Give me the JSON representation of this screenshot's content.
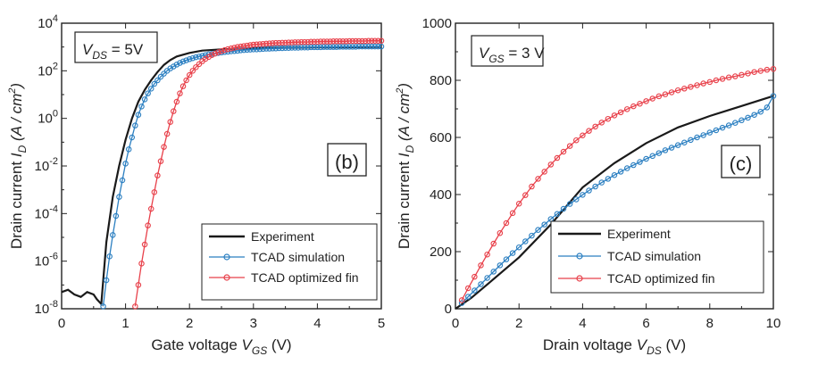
{
  "chart_data": [
    {
      "type": "line",
      "panel_label": "(b)",
      "condition": {
        "sym": "V",
        "sub": "DS",
        "rest": " = 5V"
      },
      "xlabel": {
        "text": "Gate voltage ",
        "sym": "V",
        "sub": "GS",
        "unit": " (V)"
      },
      "ylabel": {
        "pre": "Drain current ",
        "sym": "I",
        "sub": "D",
        "unit_open": " (A / cm",
        "unit_sup": "2",
        "unit_close": ")"
      },
      "xlim": [
        0,
        5
      ],
      "ylim_log10": [
        -8,
        4
      ],
      "yscale": "log",
      "xticks": [
        "0",
        "1",
        "2",
        "3",
        "4",
        "5"
      ],
      "yticks": [
        {
          "base": "10",
          "exp": "-8"
        },
        {
          "base": "10",
          "exp": "-6"
        },
        {
          "base": "10",
          "exp": "-4"
        },
        {
          "base": "10",
          "exp": "-2"
        },
        {
          "base": "10",
          "exp": "0"
        },
        {
          "base": "10",
          "exp": "2"
        },
        {
          "base": "10",
          "exp": "4"
        }
      ],
      "legend_position": "bottom-right",
      "series": [
        {
          "name": "Experiment",
          "color": "#1a1a1a",
          "marker": "none",
          "x": [
            0,
            0.1,
            0.2,
            0.3,
            0.4,
            0.5,
            0.55,
            0.62,
            0.7,
            0.8,
            0.9,
            1.0,
            1.1,
            1.2,
            1.3,
            1.4,
            1.5,
            1.6,
            1.7,
            1.8,
            2.0,
            2.2,
            2.5,
            3.0,
            3.5,
            4.0,
            5.0
          ],
          "log10_y": [
            -7.3,
            -7.2,
            -7.4,
            -7.5,
            -7.3,
            -7.4,
            -7.6,
            -7.8,
            -5.2,
            -3.3,
            -2.0,
            -0.9,
            0.0,
            0.7,
            1.2,
            1.6,
            1.95,
            2.25,
            2.45,
            2.6,
            2.75,
            2.85,
            2.9,
            2.95,
            2.97,
            2.98,
            3.0
          ]
        },
        {
          "name": "TCAD simulation",
          "color": "#2b7fc1",
          "marker": "circle",
          "x": [
            0.65,
            0.7,
            0.75,
            0.8,
            0.85,
            0.9,
            0.95,
            1.0,
            1.05,
            1.1,
            1.15,
            1.2,
            1.25,
            1.3,
            1.35,
            1.4,
            1.45,
            1.5,
            1.55,
            1.6,
            1.65,
            1.7,
            1.75,
            1.8,
            1.85,
            1.9,
            1.95,
            2.0,
            2.05,
            2.1,
            2.15,
            2.2,
            2.25,
            2.3,
            2.35,
            2.4,
            2.45,
            2.5,
            2.55,
            2.6,
            2.65,
            2.7,
            2.75,
            2.8,
            2.85,
            2.9,
            2.95,
            3.0,
            3.05,
            3.1,
            3.15,
            3.2,
            3.25,
            3.3,
            3.35,
            3.4,
            3.45,
            3.5,
            3.55,
            3.6,
            3.65,
            3.7,
            3.75,
            3.8,
            3.85,
            3.9,
            3.95,
            4.0,
            4.05,
            4.1,
            4.15,
            4.2,
            4.25,
            4.3,
            4.35,
            4.4,
            4.45,
            4.5,
            4.55,
            4.6,
            4.65,
            4.7,
            4.75,
            4.8,
            4.85,
            4.9,
            4.95,
            5.0
          ],
          "log10_y": [
            -7.9,
            -6.8,
            -5.8,
            -4.9,
            -4.1,
            -3.3,
            -2.6,
            -1.9,
            -1.3,
            -0.8,
            -0.3,
            0.15,
            0.5,
            0.8,
            1.05,
            1.25,
            1.45,
            1.6,
            1.75,
            1.88,
            2.0,
            2.1,
            2.18,
            2.26,
            2.33,
            2.39,
            2.44,
            2.49,
            2.53,
            2.57,
            2.6,
            2.63,
            2.66,
            2.69,
            2.71,
            2.73,
            2.75,
            2.77,
            2.79,
            2.8,
            2.82,
            2.83,
            2.84,
            2.86,
            2.87,
            2.88,
            2.89,
            2.9,
            2.9,
            2.91,
            2.92,
            2.93,
            2.93,
            2.94,
            2.94,
            2.95,
            2.95,
            2.96,
            2.96,
            2.97,
            2.97,
            2.97,
            2.98,
            2.98,
            2.98,
            2.99,
            2.99,
            2.99,
            2.99,
            3.0,
            3.0,
            3.0,
            3.0,
            3.0,
            3.01,
            3.01,
            3.01,
            3.01,
            3.01,
            3.01,
            3.02,
            3.02,
            3.02,
            3.02,
            3.02,
            3.02,
            3.02,
            3.02
          ]
        },
        {
          "name": "TCAD optimized fin",
          "color": "#e8404a",
          "marker": "circle",
          "x": [
            1.15,
            1.2,
            1.25,
            1.3,
            1.35,
            1.4,
            1.45,
            1.5,
            1.55,
            1.6,
            1.65,
            1.7,
            1.75,
            1.8,
            1.85,
            1.9,
            1.95,
            2.0,
            2.05,
            2.1,
            2.15,
            2.2,
            2.25,
            2.3,
            2.35,
            2.4,
            2.45,
            2.5,
            2.55,
            2.6,
            2.65,
            2.7,
            2.75,
            2.8,
            2.85,
            2.9,
            2.95,
            3.0,
            3.05,
            3.1,
            3.15,
            3.2,
            3.25,
            3.3,
            3.35,
            3.4,
            3.45,
            3.5,
            3.55,
            3.6,
            3.65,
            3.7,
            3.75,
            3.8,
            3.85,
            3.9,
            3.95,
            4.0,
            4.05,
            4.1,
            4.15,
            4.2,
            4.25,
            4.3,
            4.35,
            4.4,
            4.45,
            4.5,
            4.55,
            4.6,
            4.65,
            4.7,
            4.75,
            4.8,
            4.85,
            4.9,
            4.95,
            5.0
          ],
          "log10_y": [
            -7.9,
            -7.0,
            -6.1,
            -5.3,
            -4.5,
            -3.8,
            -3.1,
            -2.4,
            -1.8,
            -1.2,
            -0.65,
            -0.15,
            0.3,
            0.7,
            1.05,
            1.35,
            1.6,
            1.82,
            2.0,
            2.15,
            2.28,
            2.4,
            2.5,
            2.58,
            2.66,
            2.72,
            2.78,
            2.83,
            2.87,
            2.91,
            2.94,
            2.97,
            3.0,
            3.02,
            3.04,
            3.06,
            3.08,
            3.1,
            3.11,
            3.12,
            3.13,
            3.14,
            3.15,
            3.16,
            3.17,
            3.17,
            3.18,
            3.18,
            3.19,
            3.19,
            3.2,
            3.2,
            3.21,
            3.21,
            3.21,
            3.22,
            3.22,
            3.22,
            3.23,
            3.23,
            3.23,
            3.23,
            3.24,
            3.24,
            3.24,
            3.24,
            3.24,
            3.25,
            3.25,
            3.25,
            3.25,
            3.25,
            3.25,
            3.26,
            3.26,
            3.26,
            3.26,
            3.26
          ]
        }
      ]
    },
    {
      "type": "line",
      "panel_label": "(c)",
      "condition": {
        "sym": "V",
        "sub": "GS",
        "rest": " = 3 V"
      },
      "xlabel": {
        "text": "Drain voltage ",
        "sym": "V",
        "sub": "DS",
        "unit": " (V)"
      },
      "ylabel": {
        "pre": "Drain current ",
        "sym": "I",
        "sub": "D",
        "unit_open": " (A / cm",
        "unit_sup": "2",
        "unit_close": ")"
      },
      "xlim": [
        0,
        10
      ],
      "ylim": [
        0,
        1000
      ],
      "yscale": "linear",
      "xticks": [
        "0",
        "2",
        "4",
        "6",
        "8",
        "10"
      ],
      "yticks": [
        "0",
        "200",
        "400",
        "600",
        "800",
        "1000"
      ],
      "legend_position": "bottom-right",
      "series": [
        {
          "name": "Experiment",
          "color": "#1a1a1a",
          "marker": "none",
          "x": [
            0,
            0.5,
            1,
            2,
            3,
            4,
            5,
            6,
            7,
            8,
            9,
            10
          ],
          "y": [
            0,
            38,
            85,
            180,
            295,
            425,
            510,
            580,
            635,
            675,
            710,
            745
          ]
        },
        {
          "name": "TCAD simulation",
          "color": "#2b7fc1",
          "marker": "circle",
          "x": [
            0.2,
            0.4,
            0.6,
            0.8,
            1.0,
            1.2,
            1.4,
            1.6,
            1.8,
            2.0,
            2.2,
            2.4,
            2.6,
            2.8,
            3.0,
            3.2,
            3.4,
            3.6,
            3.8,
            4.0,
            4.2,
            4.4,
            4.6,
            4.8,
            5.0,
            5.2,
            5.4,
            5.6,
            5.8,
            6.0,
            6.2,
            6.4,
            6.6,
            6.8,
            7.0,
            7.2,
            7.4,
            7.6,
            7.8,
            8.0,
            8.2,
            8.4,
            8.6,
            8.8,
            9.0,
            9.2,
            9.4,
            9.6,
            9.8,
            10.0
          ],
          "y": [
            20,
            42,
            64,
            86,
            108,
            130,
            152,
            173,
            195,
            215,
            236,
            256,
            276,
            295,
            314,
            332,
            350,
            367,
            383,
            399,
            414,
            428,
            442,
            455,
            468,
            480,
            492,
            503,
            514,
            525,
            535,
            545,
            555,
            564,
            573,
            582,
            591,
            600,
            608,
            617,
            625,
            634,
            642,
            651,
            660,
            669,
            679,
            690,
            705,
            745
          ]
        },
        {
          "name": "TCAD optimized fin",
          "color": "#e8404a",
          "marker": "circle",
          "x": [
            0.2,
            0.4,
            0.6,
            0.8,
            1.0,
            1.2,
            1.4,
            1.6,
            1.8,
            2.0,
            2.2,
            2.4,
            2.6,
            2.8,
            3.0,
            3.2,
            3.4,
            3.6,
            3.8,
            4.0,
            4.2,
            4.4,
            4.6,
            4.8,
            5.0,
            5.2,
            5.4,
            5.6,
            5.8,
            6.0,
            6.2,
            6.4,
            6.6,
            6.8,
            7.0,
            7.2,
            7.4,
            7.6,
            7.8,
            8.0,
            8.2,
            8.4,
            8.6,
            8.8,
            9.0,
            9.2,
            9.4,
            9.6,
            9.8,
            10.0
          ],
          "y": [
            30,
            72,
            112,
            152,
            190,
            228,
            265,
            300,
            335,
            368,
            398,
            428,
            455,
            480,
            505,
            528,
            550,
            570,
            590,
            607,
            623,
            638,
            652,
            665,
            677,
            688,
            699,
            709,
            718,
            727,
            736,
            744,
            751,
            758,
            765,
            771,
            777,
            783,
            789,
            794,
            800,
            805,
            810,
            814,
            819,
            824,
            829,
            833,
            837,
            840
          ]
        }
      ]
    }
  ]
}
